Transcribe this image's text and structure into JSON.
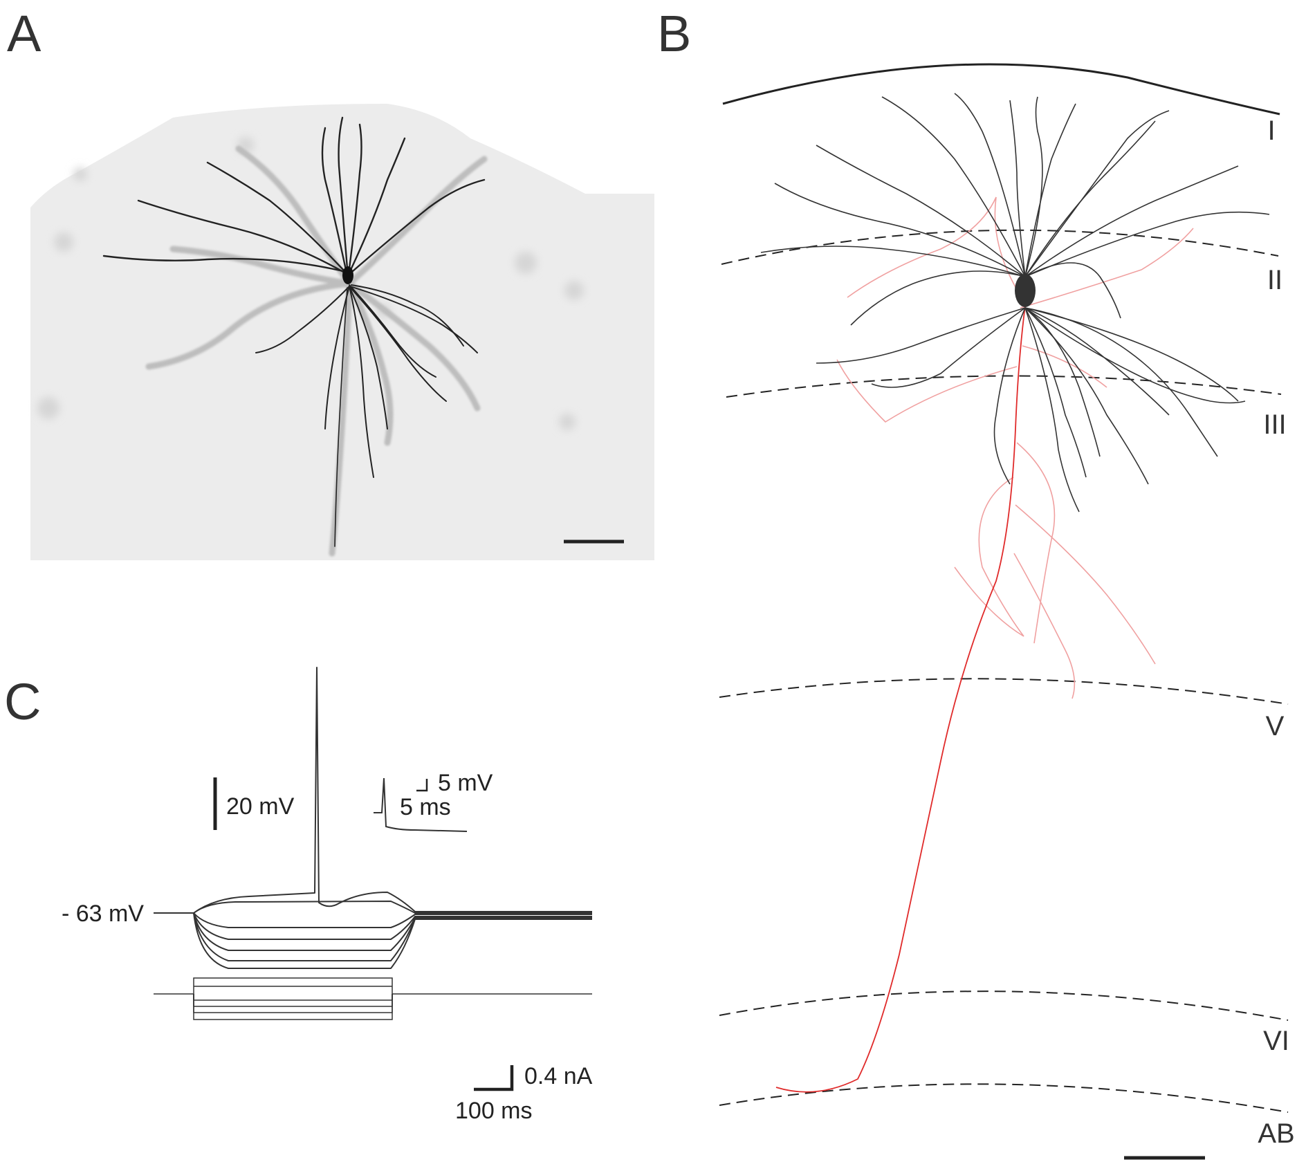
{
  "panels": {
    "a": {
      "letter": "A"
    },
    "b": {
      "letter": "B"
    },
    "c": {
      "letter": "C"
    }
  },
  "layers": [
    "I",
    "II",
    "III",
    "V",
    "VI",
    "AB"
  ],
  "recording": {
    "baseline_label": "- 63 mV",
    "voltage_scale": "20 mV",
    "inset_voltage_scale": "5 mV",
    "inset_time_scale": "5 ms",
    "current_scale": "0.4 nA",
    "time_scale": "100 ms"
  },
  "colors": {
    "dendrite": "#333333",
    "axon": "#e02a2a",
    "axon_light": "#f0a0a0",
    "micrograph_background": "#ececec",
    "trace": "#333333"
  }
}
